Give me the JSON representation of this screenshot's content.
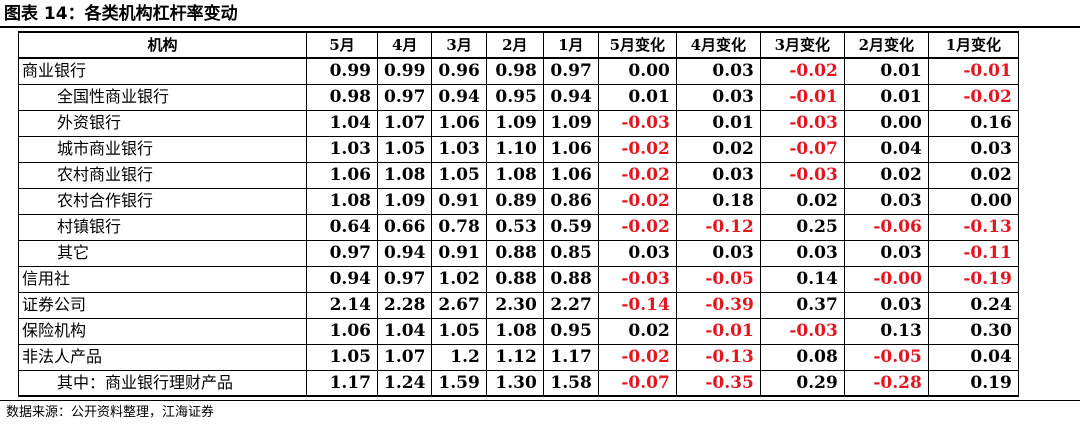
{
  "title": "图表 14：各类机构杠杆率变动",
  "source": "数据来源：公开资料整理，江海证券",
  "columns": [
    "机构",
    "5月",
    "4月",
    "3月",
    "2月",
    "1月",
    "5月变化",
    "4月变化",
    "3月变化",
    "2月变化",
    "1月变化"
  ],
  "rows": [
    {
      "name": "商业银行",
      "indent": false,
      "values": [
        "0.99",
        "0.99",
        "0.96",
        "0.98",
        "0.97",
        "0.00",
        "0.03",
        "-0.02",
        "0.01",
        "-0.01"
      ]
    },
    {
      "name": "全国性商业银行",
      "indent": true,
      "values": [
        "0.98",
        "0.97",
        "0.94",
        "0.95",
        "0.94",
        "0.01",
        "0.03",
        "-0.01",
        "0.01",
        "-0.02"
      ]
    },
    {
      "name": "外资银行",
      "indent": true,
      "values": [
        "1.04",
        "1.07",
        "1.06",
        "1.09",
        "1.09",
        "-0.03",
        "0.01",
        "-0.03",
        "0.00",
        "0.16"
      ]
    },
    {
      "name": "城市商业银行",
      "indent": true,
      "values": [
        "1.03",
        "1.05",
        "1.03",
        "1.10",
        "1.06",
        "-0.02",
        "0.02",
        "-0.07",
        "0.04",
        "0.03"
      ]
    },
    {
      "name": "农村商业银行",
      "indent": true,
      "values": [
        "1.06",
        "1.08",
        "1.05",
        "1.08",
        "1.06",
        "-0.02",
        "0.03",
        "-0.03",
        "0.02",
        "0.02"
      ]
    },
    {
      "name": "农村合作银行",
      "indent": true,
      "values": [
        "1.08",
        "1.09",
        "0.91",
        "0.89",
        "0.86",
        "-0.02",
        "0.18",
        "0.02",
        "0.03",
        "0.00"
      ]
    },
    {
      "name": "村镇银行",
      "indent": true,
      "values": [
        "0.64",
        "0.66",
        "0.78",
        "0.53",
        "0.59",
        "-0.02",
        "-0.12",
        "0.25",
        "-0.06",
        "-0.13"
      ]
    },
    {
      "name": "其它",
      "indent": true,
      "values": [
        "0.97",
        "0.94",
        "0.91",
        "0.88",
        "0.85",
        "0.03",
        "0.03",
        "0.03",
        "0.03",
        "-0.11"
      ]
    },
    {
      "name": "信用社",
      "indent": false,
      "values": [
        "0.94",
        "0.97",
        "1.02",
        "0.88",
        "0.88",
        "-0.03",
        "-0.05",
        "0.14",
        "-0.00",
        "-0.19"
      ]
    },
    {
      "name": "证券公司",
      "indent": false,
      "values": [
        "2.14",
        "2.28",
        "2.67",
        "2.30",
        "2.27",
        "-0.14",
        "-0.39",
        "0.37",
        "0.03",
        "0.24"
      ]
    },
    {
      "name": "保险机构",
      "indent": false,
      "values": [
        "1.06",
        "1.04",
        "1.05",
        "1.08",
        "0.95",
        "0.02",
        "-0.01",
        "-0.03",
        "0.13",
        "0.30"
      ]
    },
    {
      "name": "非法人产品",
      "indent": false,
      "values": [
        "1.05",
        "1.07",
        "1.2",
        "1.12",
        "1.17",
        "-0.02",
        "-0.13",
        "0.08",
        "-0.05",
        "0.04"
      ]
    },
    {
      "name": "其中：商业银行理财产品",
      "indent": true,
      "values": [
        "1.17",
        "1.24",
        "1.59",
        "1.30",
        "1.58",
        "-0.07",
        "-0.35",
        "0.29",
        "-0.28",
        "0.19"
      ]
    }
  ],
  "colors": {
    "negative": "#e8141c",
    "positive": "#000000"
  }
}
